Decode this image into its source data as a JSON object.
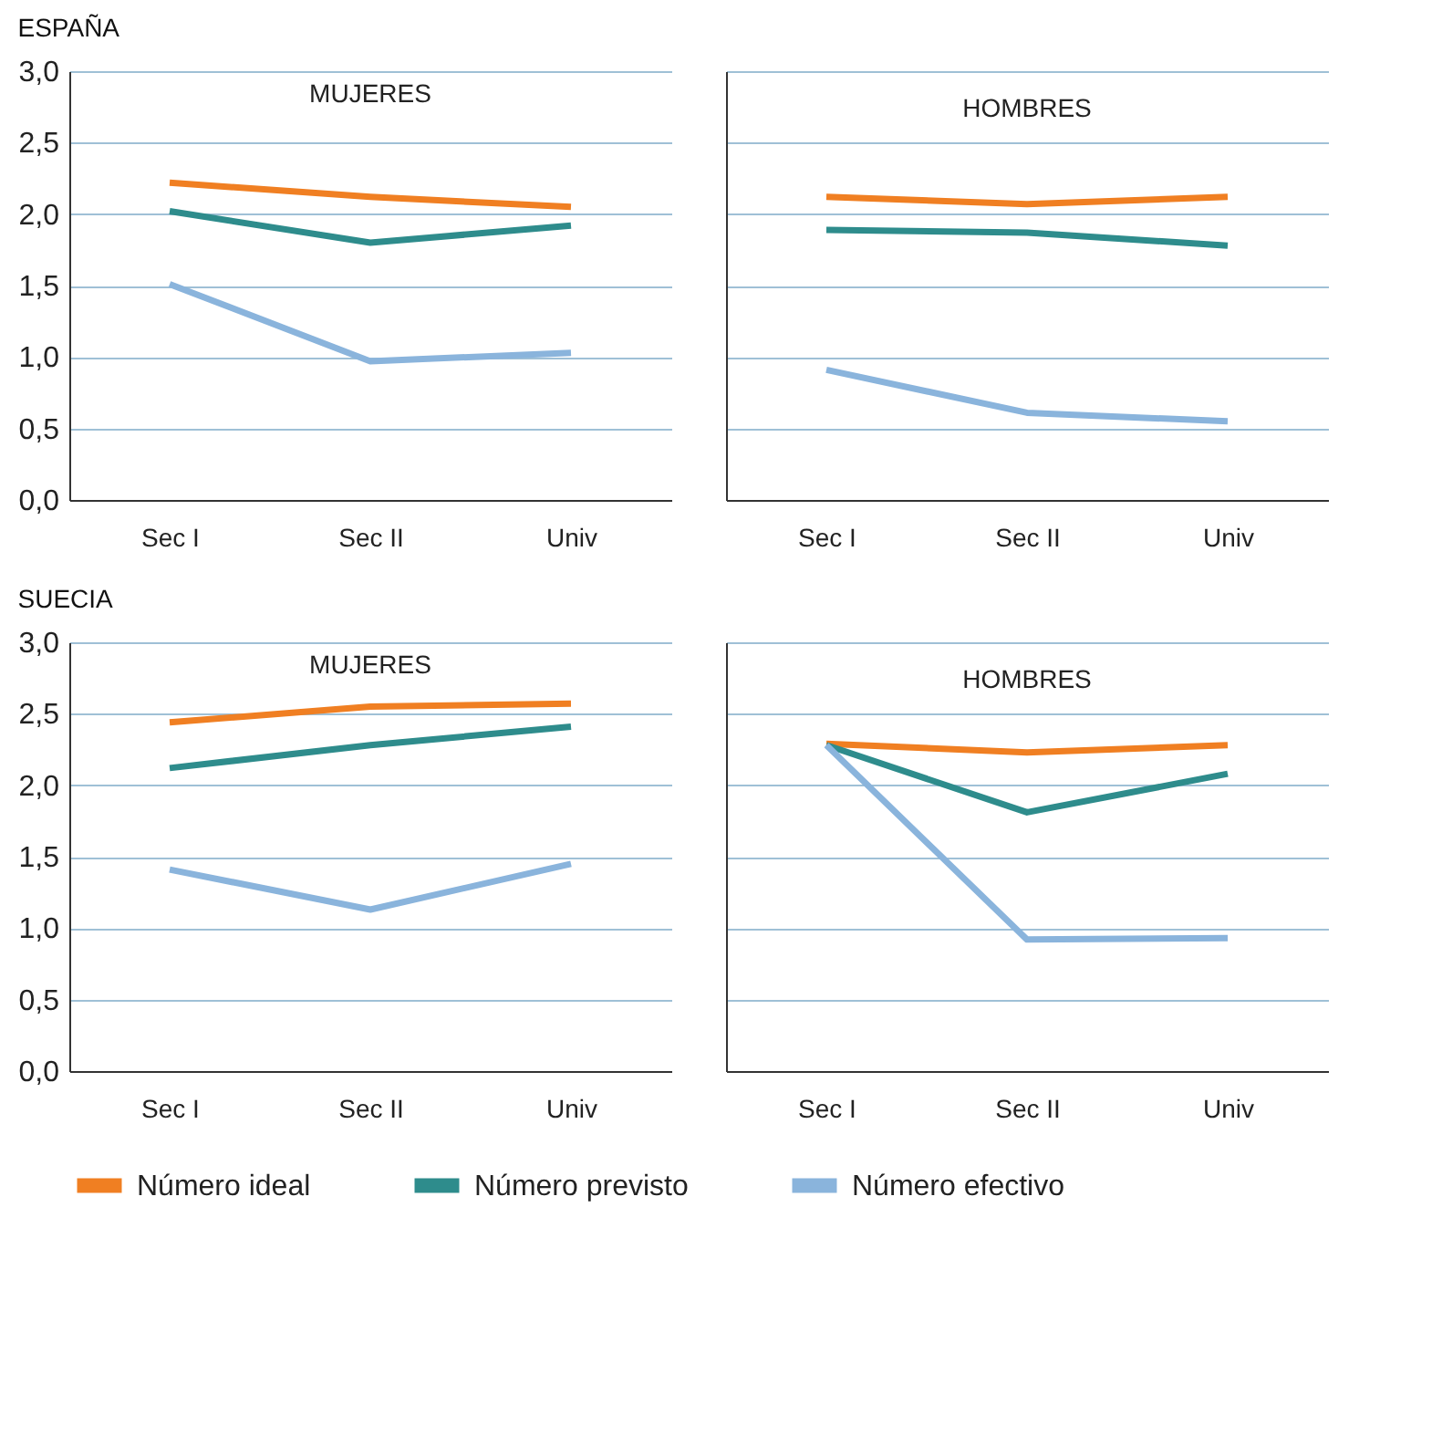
{
  "chart_data": [
    {
      "type": "line",
      "title": "MUJERES",
      "annotations": [
        "ESPAÑA"
      ],
      "categories": [
        "Sec I",
        "Sec II",
        "Univ"
      ],
      "ylim": [
        0,
        3
      ],
      "yticks": [
        {
          "value": 0,
          "label": "0,0"
        },
        {
          "value": 0.5,
          "label": "0,5"
        },
        {
          "value": 1,
          "label": "1,0"
        },
        {
          "value": 1.5,
          "label": "1,5"
        },
        {
          "value": 2,
          "label": "2,0"
        },
        {
          "value": 2.5,
          "label": "2,5"
        },
        {
          "value": 3,
          "label": "3,0"
        }
      ],
      "grid": "y",
      "legend": "bottom",
      "series": [
        {
          "name": "Número ideal",
          "color": "#f07f22",
          "values": [
            2.22,
            2.12,
            2.05
          ]
        },
        {
          "name": "Número previsto",
          "color": "#2e8c8c",
          "values": [
            2.02,
            1.8,
            1.92
          ]
        },
        {
          "name": "Número efectivo",
          "color": "#8ab4dc",
          "values": [
            1.51,
            0.97,
            1.03
          ]
        }
      ]
    },
    {
      "type": "line",
      "title": "HOMBRES",
      "categories": [
        "Sec I",
        "Sec II",
        "Univ"
      ],
      "ylim": [
        0,
        3
      ],
      "yticks": [
        {
          "value": 0,
          "label": "0,0"
        },
        {
          "value": 0.5,
          "label": "0,5"
        },
        {
          "value": 1,
          "label": "1,0"
        },
        {
          "value": 1.5,
          "label": "1,5"
        },
        {
          "value": 2,
          "label": "2,0"
        },
        {
          "value": 2.5,
          "label": "2,5"
        },
        {
          "value": 3,
          "label": "3,0"
        }
      ],
      "grid": "y",
      "legend": "bottom",
      "tick_labels": "x",
      "series": [
        {
          "name": "Número ideal",
          "color": "#f07f22",
          "values": [
            2.12,
            2.07,
            2.12
          ]
        },
        {
          "name": "Número previsto",
          "color": "#2e8c8c",
          "values": [
            1.89,
            1.87,
            1.78
          ]
        },
        {
          "name": "Número efectivo",
          "color": "#8ab4dc",
          "values": [
            0.91,
            0.61,
            0.55
          ]
        }
      ]
    },
    {
      "type": "line",
      "title": "MUJERES",
      "annotations": [
        "SUECIA"
      ],
      "categories": [
        "Sec I",
        "Sec II",
        "Univ"
      ],
      "ylim": [
        0,
        3
      ],
      "yticks": [
        {
          "value": 0,
          "label": "0,0"
        },
        {
          "value": 0.5,
          "label": "0,5"
        },
        {
          "value": 1,
          "label": "1,0"
        },
        {
          "value": 1.5,
          "label": "1,5"
        },
        {
          "value": 2,
          "label": "2,0"
        },
        {
          "value": 2.5,
          "label": "2,5"
        },
        {
          "value": 3,
          "label": "3,0"
        }
      ],
      "grid": "y",
      "legend": "bottom",
      "series": [
        {
          "name": "Número ideal",
          "color": "#f07f22",
          "values": [
            2.44,
            2.55,
            2.57
          ]
        },
        {
          "name": "Número previsto",
          "color": "#2e8c8c",
          "values": [
            2.12,
            2.28,
            2.41
          ]
        },
        {
          "name": "Número efectivo",
          "color": "#8ab4dc",
          "values": [
            1.41,
            1.13,
            1.45
          ]
        }
      ]
    },
    {
      "type": "line",
      "title": "HOMBRES",
      "categories": [
        "Sec I",
        "Sec II",
        "Univ"
      ],
      "ylim": [
        0,
        3
      ],
      "yticks": [
        {
          "value": 0,
          "label": "0,0"
        },
        {
          "value": 0.5,
          "label": "0,5"
        },
        {
          "value": 1,
          "label": "1,0"
        },
        {
          "value": 1.5,
          "label": "1,5"
        },
        {
          "value": 2,
          "label": "2,0"
        },
        {
          "value": 2.5,
          "label": "2,5"
        },
        {
          "value": 3,
          "label": "3,0"
        }
      ],
      "grid": "y",
      "legend": "bottom",
      "tick_labels": "x",
      "series": [
        {
          "name": "Número ideal",
          "color": "#f07f22",
          "values": [
            2.29,
            2.23,
            2.28
          ]
        },
        {
          "name": "Número previsto",
          "color": "#2e8c8c",
          "values": [
            2.28,
            1.81,
            2.08
          ]
        },
        {
          "name": "Número efectivo",
          "color": "#8ab4dc",
          "values": [
            2.28,
            0.92,
            0.93
          ]
        }
      ]
    }
  ]
}
